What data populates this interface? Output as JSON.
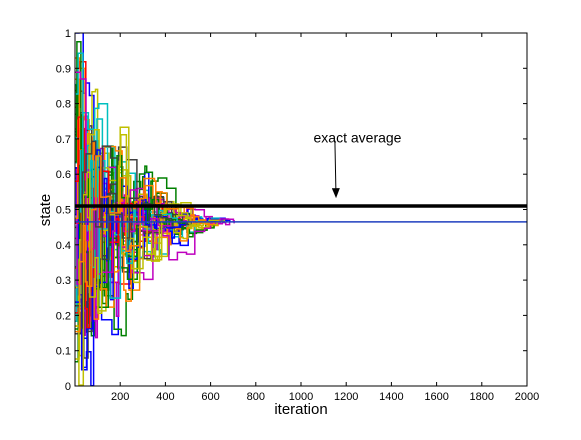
{
  "chart_data": {
    "type": "line",
    "title": "",
    "xlabel": "iteration",
    "ylabel": "state",
    "xlim": [
      0,
      2000
    ],
    "ylim": [
      0,
      1
    ],
    "x_ticks": [
      200,
      400,
      600,
      800,
      1000,
      1200,
      1400,
      1600,
      1800,
      2000
    ],
    "y_ticks": [
      0,
      0.1,
      0.2,
      0.3,
      0.4,
      0.5,
      0.6,
      0.7,
      0.8,
      0.9,
      1
    ],
    "grid": false,
    "legend": "none",
    "exact_average": 0.51,
    "converged_state": 0.465,
    "converged_state_color": "#1f3fbf",
    "exact_average_color": "#000000",
    "annotation": {
      "text": "exact average",
      "arrow_tail": [
        1150,
        0.695
      ],
      "arrow_head": [
        1155,
        0.535
      ],
      "text_anchor": [
        1250,
        0.69
      ]
    },
    "node_count": 40,
    "series_colors": [
      "#0000ff",
      "#ff0000",
      "#008000",
      "#00bfbf",
      "#bf00bf",
      "#bfbf00",
      "#404040",
      "#ff8000"
    ],
    "axis_color": "#000000"
  }
}
